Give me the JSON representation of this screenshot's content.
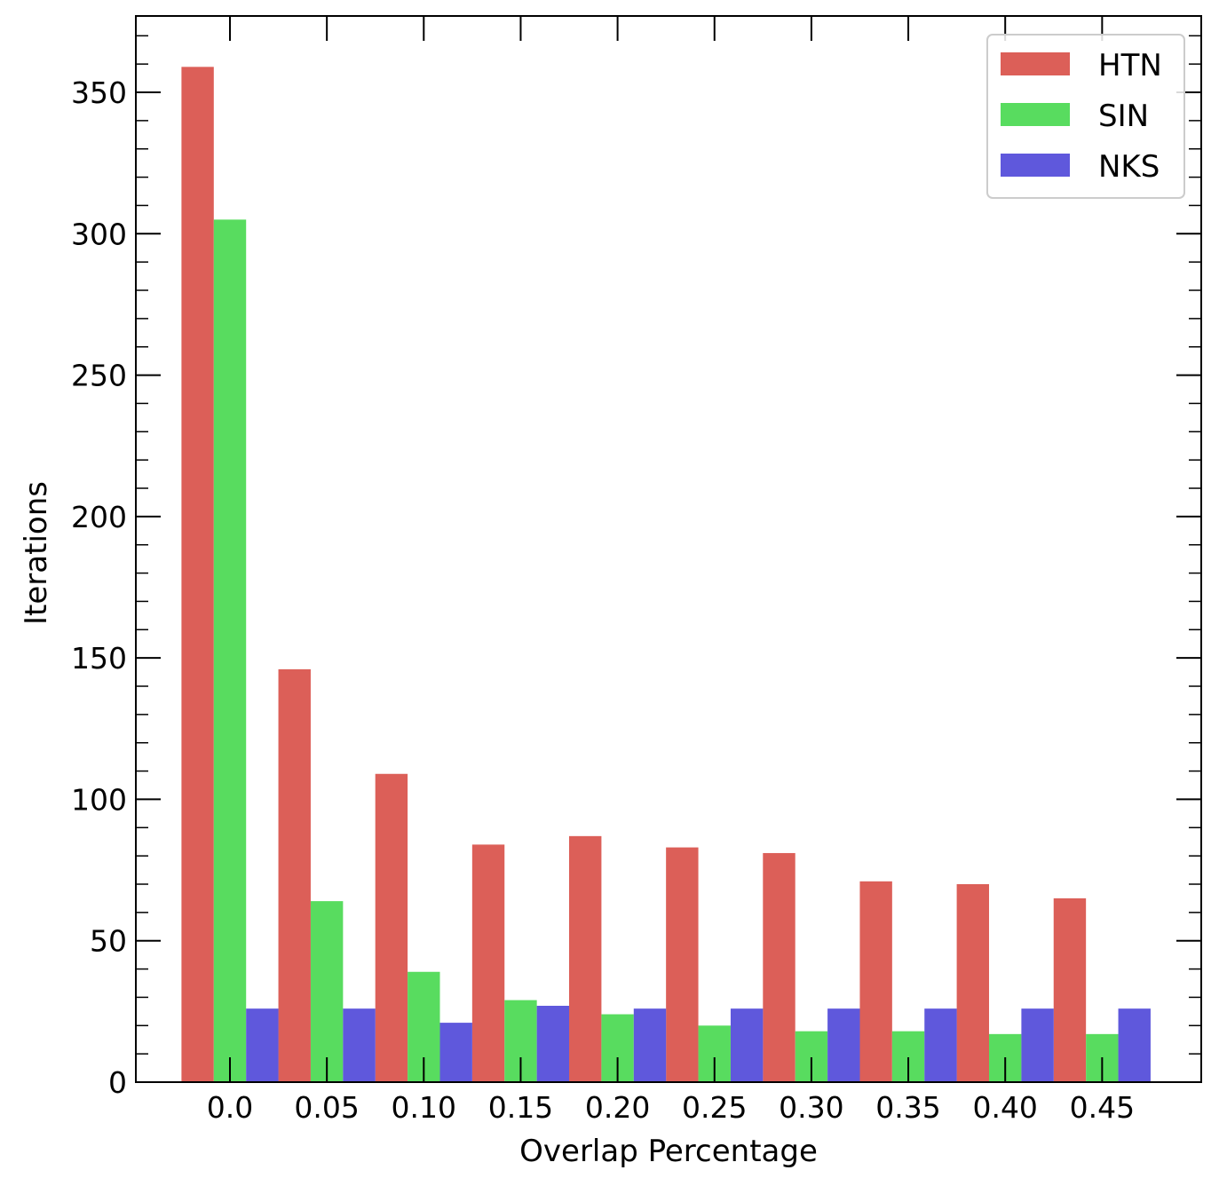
{
  "chart_data": {
    "type": "bar",
    "xlabel": "Overlap Percentage",
    "ylabel": "Iterations",
    "categories": [
      "0.0",
      "0.05",
      "0.10",
      "0.15",
      "0.20",
      "0.25",
      "0.30",
      "0.35",
      "0.40",
      "0.45"
    ],
    "series": [
      {
        "name": "HTN",
        "color": "#dc5f58",
        "values": [
          359,
          146,
          109,
          84,
          87,
          83,
          81,
          71,
          70,
          65
        ]
      },
      {
        "name": "SIN",
        "color": "#58dc5f",
        "values": [
          305,
          64,
          39,
          29,
          24,
          20,
          18,
          18,
          17,
          17
        ]
      },
      {
        "name": "NKS",
        "color": "#5f58dc",
        "values": [
          26,
          26,
          21,
          27,
          26,
          26,
          26,
          26,
          26,
          26
        ]
      }
    ],
    "ylim": [
      0,
      377
    ],
    "yticks": [
      "0",
      "50",
      "100",
      "150",
      "200",
      "250",
      "300",
      "350"
    ],
    "ytick_values": [
      0,
      50,
      100,
      150,
      200,
      250,
      300,
      350
    ],
    "yminor_step": 10,
    "grid": false,
    "legend_position": "top-right"
  }
}
